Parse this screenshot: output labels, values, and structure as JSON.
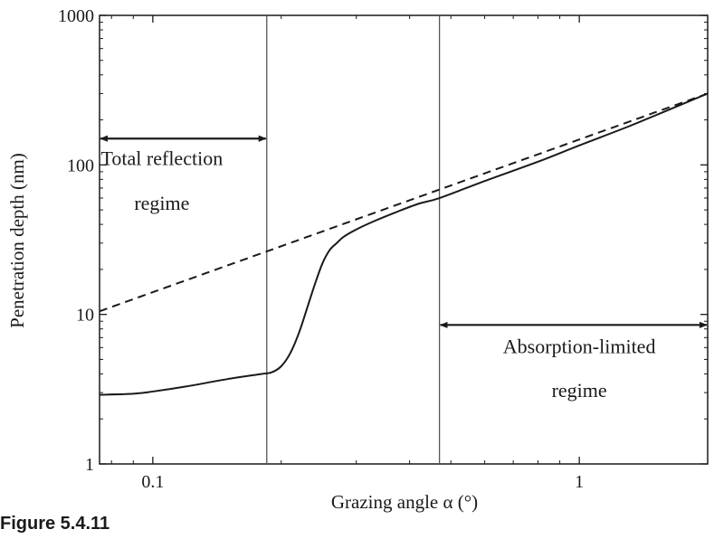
{
  "figure_label": "Figure 5.4.11",
  "chart_data": {
    "type": "line",
    "xlabel": "Grazing angle α  (°)",
    "ylabel": "Penetration depth (nm)",
    "x_scale": "log",
    "y_scale": "log",
    "xlim": [
      0.075,
      2.0
    ],
    "ylim": [
      1,
      1000
    ],
    "x_ticks": [
      0.1,
      1
    ],
    "x_tick_labels": [
      "0.1",
      "1"
    ],
    "y_ticks": [
      1,
      10,
      100,
      1000
    ],
    "y_tick_labels": [
      "1",
      "10",
      "100",
      "1000"
    ],
    "grid": false,
    "legend": "none",
    "series": [
      {
        "style": "solid",
        "color": "#1a1a1a",
        "x": [
          0.075,
          0.09,
          0.1,
          0.12,
          0.15,
          0.18,
          0.19,
          0.2,
          0.21,
          0.22,
          0.23,
          0.24,
          0.25,
          0.26,
          0.27,
          0.28,
          0.3,
          0.33,
          0.37,
          0.42,
          0.47,
          0.6,
          0.8,
          1.0,
          1.3,
          1.6,
          2.0
        ],
        "y": [
          2.9,
          2.95,
          3.05,
          3.3,
          3.7,
          4.0,
          4.1,
          4.5,
          5.5,
          7.5,
          11,
          16,
          22,
          27,
          30,
          33,
          37,
          42,
          48,
          55,
          60,
          78,
          105,
          135,
          180,
          230,
          300
        ]
      },
      {
        "style": "dashed",
        "color": "#1a1a1a",
        "x": [
          0.075,
          2.0
        ],
        "y": [
          10.5,
          300
        ]
      }
    ],
    "reference_lines": [
      {
        "orientation": "vertical",
        "x": 0.185
      },
      {
        "orientation": "vertical",
        "x": 0.47
      }
    ],
    "annotations": [
      {
        "id": "total-reflection",
        "lines": [
          "Total reflection",
          "regime"
        ],
        "arrow_x": [
          0.075,
          0.185
        ],
        "arrow_y": 150,
        "text_x": 0.105,
        "text_y": [
          100,
          50
        ]
      },
      {
        "id": "absorption-limited",
        "lines": [
          "Absorption-limited",
          "regime"
        ],
        "arrow_x": [
          0.47,
          2.0
        ],
        "arrow_y": 8.5,
        "text_x": 1.0,
        "text_y": [
          5.5,
          2.8
        ]
      }
    ]
  }
}
